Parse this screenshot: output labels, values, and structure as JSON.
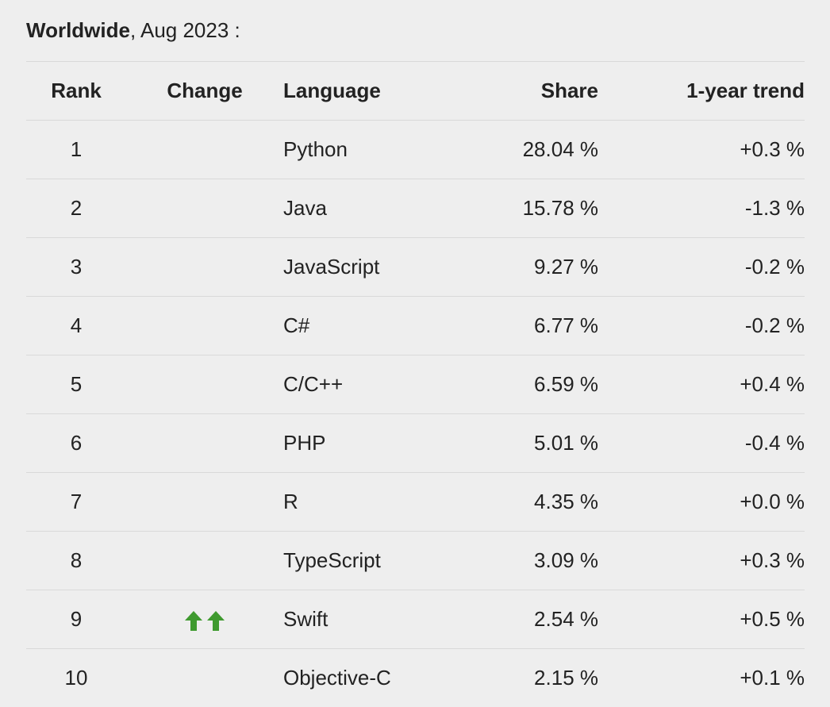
{
  "heading": {
    "strong": "Worldwide",
    "rest": ", Aug 2023 :"
  },
  "table": {
    "headers": {
      "rank": "Rank",
      "change": "Change",
      "language": "Language",
      "share": "Share",
      "trend": "1-year trend"
    },
    "rows": [
      {
        "rank": "1",
        "change": "",
        "language": "Python",
        "share": "28.04 %",
        "trend": "+0.3 %"
      },
      {
        "rank": "2",
        "change": "",
        "language": "Java",
        "share": "15.78 %",
        "trend": "-1.3 %"
      },
      {
        "rank": "3",
        "change": "",
        "language": "JavaScript",
        "share": "9.27 %",
        "trend": "-0.2 %"
      },
      {
        "rank": "4",
        "change": "",
        "language": "C#",
        "share": "6.77 %",
        "trend": "-0.2 %"
      },
      {
        "rank": "5",
        "change": "",
        "language": "C/C++",
        "share": "6.59 %",
        "trend": "+0.4 %"
      },
      {
        "rank": "6",
        "change": "",
        "language": "PHP",
        "share": "5.01 %",
        "trend": "-0.4 %"
      },
      {
        "rank": "7",
        "change": "",
        "language": "R",
        "share": "4.35 %",
        "trend": "+0.0 %"
      },
      {
        "rank": "8",
        "change": "",
        "language": "TypeScript",
        "share": "3.09 %",
        "trend": "+0.3 %"
      },
      {
        "rank": "9",
        "change": "double-up-arrow-icon",
        "language": "Swift",
        "share": "2.54 %",
        "trend": "+0.5 %"
      },
      {
        "rank": "10",
        "change": "",
        "language": "Objective-C",
        "share": "2.15 %",
        "trend": "+0.1 %"
      }
    ]
  },
  "colors": {
    "background": "#eeeeee",
    "text": "#222222",
    "divider": "#d9d9d9",
    "up_arrow": "#3f9a2f"
  }
}
